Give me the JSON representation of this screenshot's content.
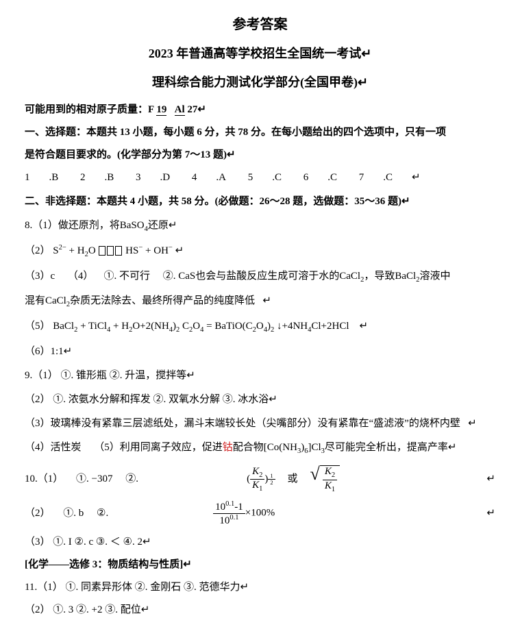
{
  "colors": {
    "text": "#000000",
    "bg": "#ffffff",
    "red": "#d02020"
  },
  "fonts": {
    "body": "SimSun",
    "math": "Times New Roman",
    "base_pt": 15
  },
  "title_main": "参考答案",
  "title_sub": "2023 年普通高等学校招生全国统一考试",
  "title_sub_mark": "↵",
  "title_sub2": "理科综合能力测试化学部分(全国甲卷)",
  "title_sub2_mark": "↵",
  "atomic_mass_prefix": "可能用到的相对原子质量：",
  "atomic_mass_F": "F ",
  "atomic_mass_F_val": "19",
  "atomic_mass_Al": "   Al ",
  "atomic_mass_Al_val": "27",
  "atomic_mass_mark": "↵",
  "section1_l1": "一、选择题：本题共 13 小题，每小题 6 分，共 78 分。在每小题给出的四个选项中，只有一项",
  "section1_l2": "是符合题目要求的。(化学部分为第 7～13 题)",
  "section1_mark": "↵",
  "mcq": [
    {
      "n": "1",
      "ans": "B"
    },
    {
      "n": "2",
      "ans": "B"
    },
    {
      "n": "3",
      "ans": "D"
    },
    {
      "n": "4",
      "ans": "A"
    },
    {
      "n": "5",
      "ans": "C"
    },
    {
      "n": "6",
      "ans": "C"
    },
    {
      "n": "7",
      "ans": "C"
    }
  ],
  "mcq_mark": "↵",
  "section2": "二、非选择题：本题共 4 小题，共 58 分。(必做题：26～28 题，选做题：35～36 题)",
  "section2_mark": "↵",
  "q8_1_prefix": "8.（1）做还原剂，将",
  "q8_1_formula": "BaSO",
  "q8_1_sub": "4",
  "q8_1_suffix": "还原",
  "q8_1_mark": "↵",
  "q8_2_label": "（2）",
  "q8_2_lhs_s": "S",
  "q8_2_lhs_s_sup": "2−",
  "q8_2_plus1": " + H",
  "q8_2_h2o_sub": "2",
  "q8_2_h2o": "O",
  "q8_2_mid": " HS",
  "q8_2_hs_sup": "−",
  "q8_2_plus2": " + OH",
  "q8_2_oh_sup": "−",
  "q8_2_mark": "↵",
  "q8_34_a": "（3）c",
  "q8_34_b": "（4）",
  "q8_34_c": "①. 不可行",
  "q8_34_d": "②. ",
  "q8_34_cas": "CaS",
  "q8_34_e": "也会与盐酸反应生成可溶于水的",
  "q8_34_cacl2": "CaCl",
  "q8_34_cacl2_sub": "2",
  "q8_34_f": "，导致",
  "q8_34_bacl2": "BaCl",
  "q8_34_bacl2_sub": "2",
  "q8_34_g": "溶液中",
  "q8_34_line2_prefix": "混有",
  "q8_34_line2_body": "杂质无法除去、最终所得产品的纯度降低",
  "q8_34_mark": "↵",
  "q8_5_label": "（5）",
  "q8_5_eqn_plain": "BaCl₂ + TiCl₄ + H₂O+2(NH₄)₂ C₂O₄ = BaTiO(C₂O₄)₂ ↓+4NH₄Cl+2HCl",
  "q8_5_mark": "↵",
  "q8_6": "（6）1:1",
  "q8_6_mark": "↵",
  "q9_1": "9.（1）     ①. 锥形瓶     ②. 升温，搅拌等",
  "q9_1_mark": "↵",
  "q9_2": "（2）     ①. 浓氨水分解和挥发     ②. 双氧水分解     ③. 冰水浴",
  "q9_2_mark": "↵",
  "q9_3": "（3）玻璃棒没有紧靠三层滤纸处，漏斗末端较长处（尖嘴部分）没有紧靠在“盛滤液”的烧杯内壁",
  "q9_3_mark": "↵",
  "q9_45_a": "（4）活性炭",
  "q9_45_b": "（5）利用同离子效应，促进",
  "q9_45_red": "钴",
  "q9_45_c": "配合物[Co(NH",
  "q9_45_sub1": "3",
  "q9_45_d": ")",
  "q9_45_sub2": "6",
  "q9_45_e": "]Cl",
  "q9_45_sub3": "3",
  "q9_45_f": "尽可能完全析出，提高产率",
  "q9_45_mark": "↵",
  "q10_1_label": "10.（1）     ①. −307     ②. ",
  "q10_1_K2": "K",
  "q10_1_K2_sub": "2",
  "q10_1_K1": "K",
  "q10_1_K1_sub": "1",
  "q10_1_exp_num": "1",
  "q10_1_exp_den": "2",
  "q10_1_or": "或",
  "q10_1_mark": "↵",
  "q10_2_label": "（2）     ①. b     ②. ",
  "q10_2_num_a": "10",
  "q10_2_num_exp": "0.1",
  "q10_2_num_b": "-1",
  "q10_2_den_a": "10",
  "q10_2_den_exp": "0.1",
  "q10_2_suffix": "×100%",
  "q10_2_mark": "↵",
  "q10_3": "（3）     ①. I     ②. c     ③. ＜     ④. 2",
  "q10_3_mark": "↵",
  "elective_header": "[化学——选修 3：物质结构与性质]",
  "elective_mark": "↵",
  "q11_1": "11.（1）     ①. 同素异形体     ②. 金刚石     ③. 范德华力",
  "q11_1_mark": "↵",
  "q11_2": "（2）     ①. 3     ②. +2     ③. 配位",
  "q11_2_mark": "↵"
}
